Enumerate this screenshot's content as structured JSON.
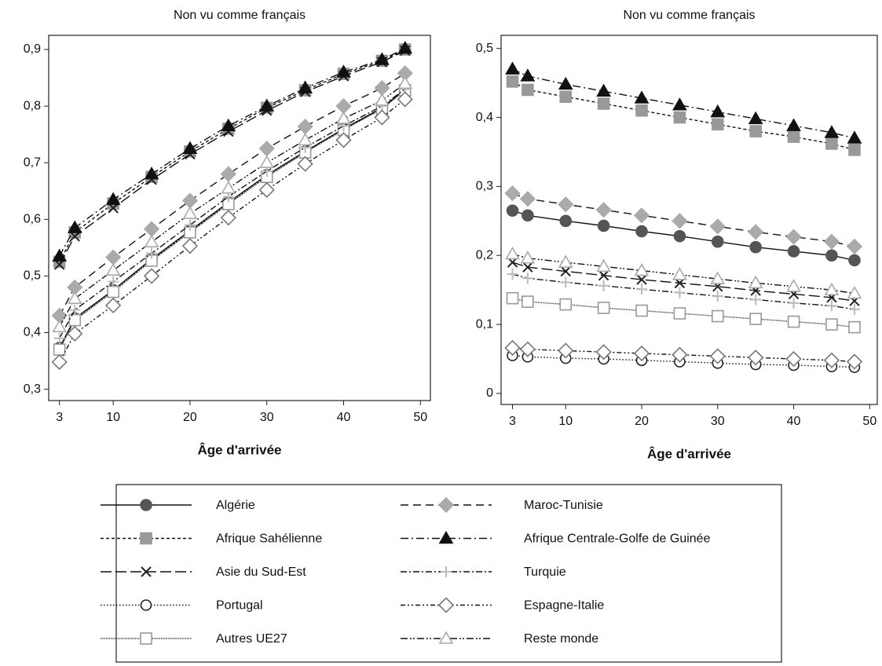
{
  "chart_data": [
    {
      "type": "line",
      "title": "Non vu comme français",
      "x_label": "Âge d'arrivée",
      "x": [
        3,
        5,
        10,
        15,
        20,
        25,
        30,
        35,
        40,
        45,
        48
      ],
      "xlim": [
        1.6,
        51.3
      ],
      "xticks": [
        3,
        10,
        20,
        30,
        40,
        50
      ],
      "ylim": [
        0.28,
        0.925
      ],
      "yticks": [
        {
          "value": 0.3,
          "label": "0,3"
        },
        {
          "value": 0.4,
          "label": "0,4"
        },
        {
          "value": 0.5,
          "label": "0,5"
        },
        {
          "value": 0.6,
          "label": "0,6"
        },
        {
          "value": 0.7,
          "label": "0,7"
        },
        {
          "value": 0.8,
          "label": "0,8"
        },
        {
          "value": 0.9,
          "label": "0,9"
        }
      ],
      "series": [
        {
          "name": "Algérie",
          "color": "#555555",
          "marker": "circle",
          "filled": true,
          "dash": "",
          "values": [
            0.373,
            0.425,
            0.475,
            0.53,
            0.58,
            0.63,
            0.678,
            0.72,
            0.76,
            0.797,
            0.83
          ]
        },
        {
          "name": "Afrique Sahélienne",
          "color": "#999999",
          "marker": "square",
          "filled": true,
          "dash": "4,3",
          "values": [
            0.525,
            0.577,
            0.628,
            0.675,
            0.72,
            0.76,
            0.797,
            0.828,
            0.857,
            0.88,
            0.9
          ]
        },
        {
          "name": "Asie du Sud-Est",
          "color": "#222222",
          "marker": "x",
          "filled": false,
          "dash": "14,5",
          "values": [
            0.52,
            0.57,
            0.62,
            0.67,
            0.715,
            0.755,
            0.792,
            0.825,
            0.853,
            0.878,
            0.898
          ]
        },
        {
          "name": "Portugal",
          "color": "#222222",
          "marker": "circle",
          "filled": false,
          "dash": "1.5,2.5",
          "values": [
            0.372,
            0.423,
            0.474,
            0.528,
            0.578,
            0.628,
            0.677,
            0.719,
            0.759,
            0.796,
            0.829
          ]
        },
        {
          "name": "Autres UE27",
          "color": "#999999",
          "marker": "square",
          "filled": false,
          "dash": "1,1.2",
          "values": [
            0.37,
            0.422,
            0.472,
            0.527,
            0.577,
            0.627,
            0.675,
            0.718,
            0.758,
            0.795,
            0.828
          ]
        },
        {
          "name": "Maroc-Tunisie",
          "color": "#aaaaaa",
          "marker": "diamond",
          "filled": true,
          "dash": "10,6",
          "values": [
            0.43,
            0.48,
            0.533,
            0.583,
            0.633,
            0.68,
            0.725,
            0.764,
            0.8,
            0.832,
            0.858
          ]
        },
        {
          "name": "Afrique Centrale-Golfe de Guinée",
          "color": "#111111",
          "marker": "triangle",
          "filled": true,
          "dash": "10,4,2,4",
          "values": [
            0.535,
            0.585,
            0.635,
            0.68,
            0.725,
            0.765,
            0.8,
            0.832,
            0.86,
            0.882,
            0.902
          ]
        },
        {
          "name": "Turquie",
          "color": "#bbbbbb",
          "marker": "plus",
          "filled": false,
          "dash": "8,3,2,3",
          "values": [
            0.39,
            0.44,
            0.49,
            0.54,
            0.59,
            0.64,
            0.685,
            0.727,
            0.765,
            0.8,
            0.83
          ]
        },
        {
          "name": "Espagne-Italie",
          "color": "#777777",
          "marker": "diamond",
          "filled": false,
          "dash": "6,3,2,3,2,3",
          "values": [
            0.348,
            0.398,
            0.448,
            0.5,
            0.553,
            0.603,
            0.652,
            0.698,
            0.74,
            0.78,
            0.812
          ]
        },
        {
          "name": "Reste monde",
          "color": "#aaaaaa",
          "marker": "triangle",
          "filled": false,
          "dash": "9,3,2,2,2,3",
          "values": [
            0.41,
            0.46,
            0.51,
            0.56,
            0.61,
            0.655,
            0.7,
            0.74,
            0.778,
            0.81,
            0.84
          ]
        }
      ]
    },
    {
      "type": "line",
      "title": "Non vu comme français",
      "x_label": "Âge d'arrivée",
      "x": [
        3,
        5,
        10,
        15,
        20,
        25,
        30,
        35,
        40,
        45,
        48
      ],
      "xlim": [
        1.5,
        51
      ],
      "xticks": [
        3,
        10,
        20,
        30,
        40,
        50
      ],
      "ylim": [
        -0.016,
        0.519
      ],
      "yticks": [
        0,
        {
          "value": 0.1,
          "label": "0,1"
        },
        {
          "value": 0.2,
          "label": "0,2"
        },
        {
          "value": 0.3,
          "label": "0,3"
        },
        {
          "value": 0.4,
          "label": "0,4"
        },
        {
          "value": 0.5,
          "label": "0,5"
        }
      ],
      "series": [
        {
          "name": "Algérie",
          "color": "#555555",
          "marker": "circle",
          "filled": true,
          "dash": "",
          "values": [
            0.265,
            0.258,
            0.25,
            0.243,
            0.235,
            0.228,
            0.22,
            0.212,
            0.206,
            0.2,
            0.193
          ]
        },
        {
          "name": "Afrique Sahélienne",
          "color": "#999999",
          "marker": "square",
          "filled": true,
          "dash": "4,3",
          "values": [
            0.452,
            0.44,
            0.43,
            0.42,
            0.41,
            0.4,
            0.39,
            0.38,
            0.372,
            0.362,
            0.353
          ]
        },
        {
          "name": "Asie du Sud-Est",
          "color": "#222222",
          "marker": "x",
          "filled": false,
          "dash": "14,5",
          "values": [
            0.19,
            0.183,
            0.177,
            0.171,
            0.165,
            0.16,
            0.155,
            0.149,
            0.144,
            0.139,
            0.134
          ]
        },
        {
          "name": "Portugal",
          "color": "#222222",
          "marker": "circle",
          "filled": false,
          "dash": "1.5,2.5",
          "values": [
            0.055,
            0.053,
            0.051,
            0.05,
            0.048,
            0.046,
            0.044,
            0.042,
            0.041,
            0.039,
            0.038
          ]
        },
        {
          "name": "Autres UE27",
          "color": "#999999",
          "marker": "square",
          "filled": false,
          "dash": "1,1.2",
          "values": [
            0.138,
            0.133,
            0.129,
            0.124,
            0.12,
            0.116,
            0.112,
            0.108,
            0.104,
            0.1,
            0.096
          ]
        },
        {
          "name": "Maroc-Tunisie",
          "color": "#aaaaaa",
          "marker": "diamond",
          "filled": true,
          "dash": "10,6",
          "values": [
            0.29,
            0.282,
            0.274,
            0.266,
            0.258,
            0.25,
            0.242,
            0.234,
            0.227,
            0.22,
            0.213
          ]
        },
        {
          "name": "Afrique Centrale-Golfe de Guinée",
          "color": "#111111",
          "marker": "triangle",
          "filled": true,
          "dash": "10,4,2,4",
          "values": [
            0.47,
            0.46,
            0.448,
            0.438,
            0.428,
            0.418,
            0.408,
            0.398,
            0.388,
            0.378,
            0.37
          ]
        },
        {
          "name": "Turquie",
          "color": "#bbbbbb",
          "marker": "plus",
          "filled": false,
          "dash": "8,3,2,3",
          "values": [
            0.173,
            0.167,
            0.161,
            0.156,
            0.151,
            0.146,
            0.141,
            0.136,
            0.131,
            0.127,
            0.122
          ]
        },
        {
          "name": "Espagne-Italie",
          "color": "#777777",
          "marker": "diamond",
          "filled": false,
          "dash": "6,3,2,3,2,3",
          "values": [
            0.066,
            0.064,
            0.062,
            0.06,
            0.058,
            0.056,
            0.054,
            0.052,
            0.05,
            0.048,
            0.046
          ]
        },
        {
          "name": "Reste monde",
          "color": "#aaaaaa",
          "marker": "triangle",
          "filled": false,
          "dash": "9,3,2,2,2,3",
          "values": [
            0.202,
            0.196,
            0.19,
            0.184,
            0.178,
            0.172,
            0.166,
            0.16,
            0.155,
            0.15,
            0.145
          ]
        }
      ]
    }
  ]
}
